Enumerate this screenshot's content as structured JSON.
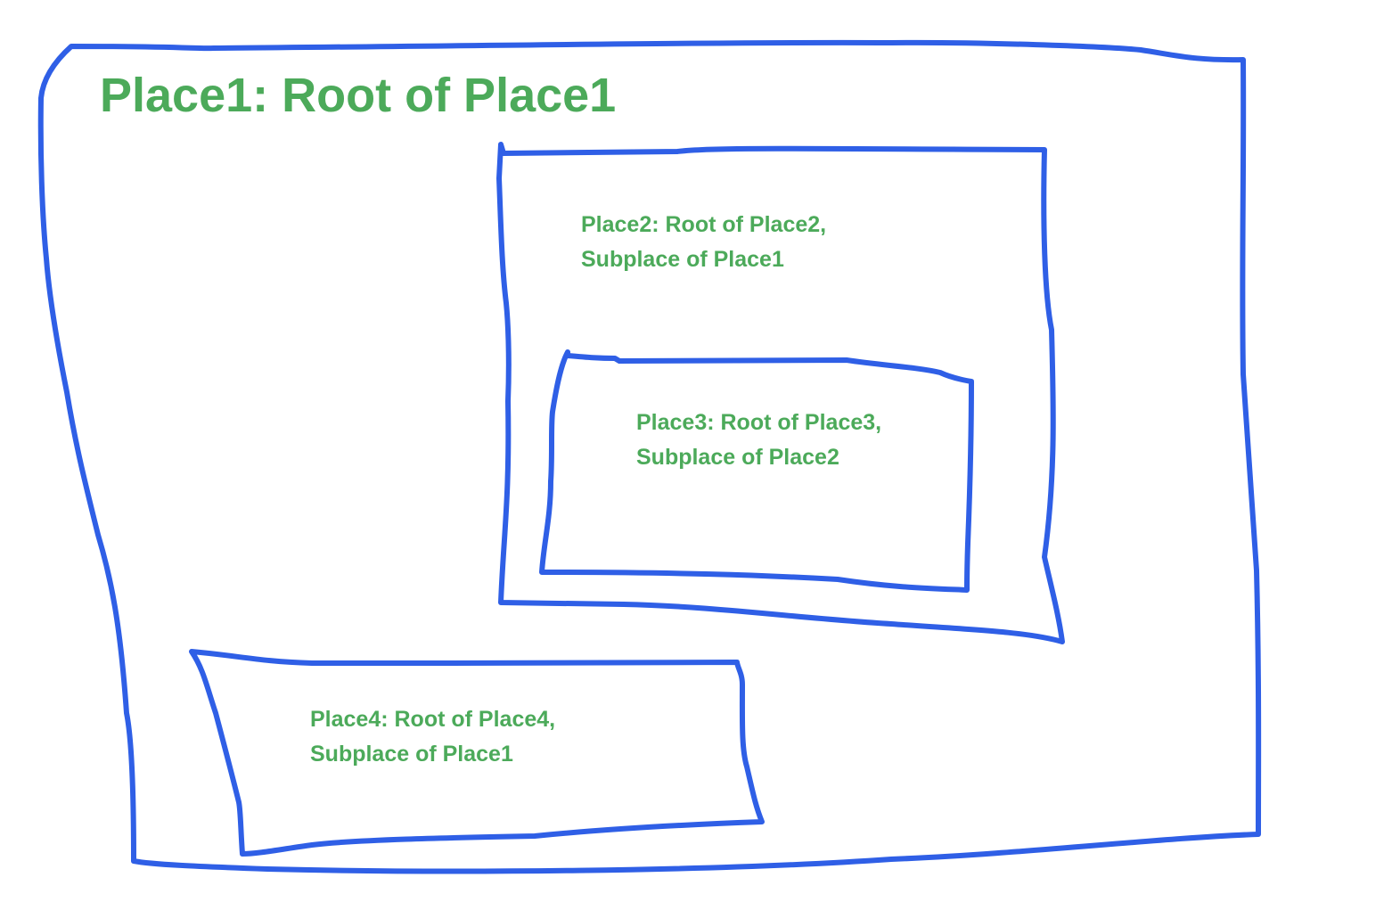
{
  "colors": {
    "outline": "#2f5fe6",
    "text": "#4caa5a",
    "background": "#ffffff"
  },
  "places": [
    {
      "id": "place1",
      "lines": [
        "Place1: Root of Place1"
      ]
    },
    {
      "id": "place2",
      "lines": [
        "Place2: Root of Place2,",
        "Subplace of Place1"
      ]
    },
    {
      "id": "place3",
      "lines": [
        "Place3: Root of Place3,",
        "Subplace of Place2"
      ]
    },
    {
      "id": "place4",
      "lines": [
        "Place4: Root of Place4,",
        "Subplace of Place1"
      ]
    }
  ]
}
